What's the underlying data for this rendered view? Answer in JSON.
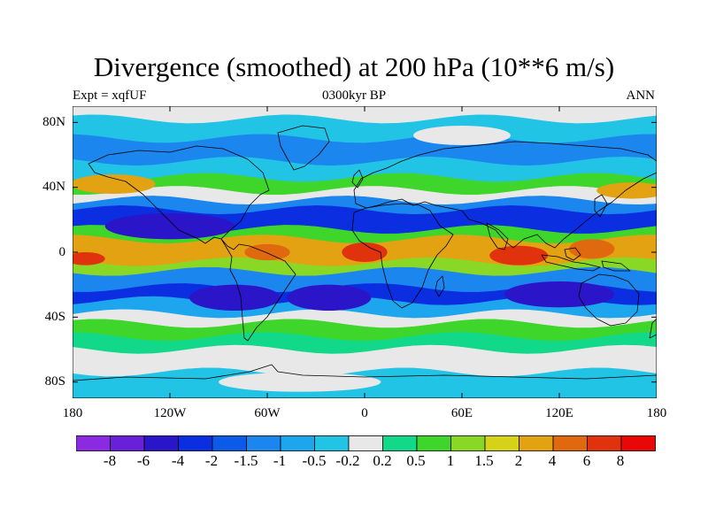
{
  "title": "Divergence (smoothed) at 200 hPa (10**6 m/s)",
  "experiment": "Expt = xqfUF",
  "period": "0300kyr BP",
  "season": "ANN",
  "chart_data": {
    "type": "heatmap",
    "projection": "cylindrical-equidistant",
    "variable": "Divergence (smoothed) at 200 hPa",
    "units": "10**6 m/s",
    "lon_range": [
      -180,
      180
    ],
    "lat_range": [
      -90,
      90
    ],
    "x_ticks": [
      {
        "lon": -180,
        "label": "180"
      },
      {
        "lon": -120,
        "label": "120W"
      },
      {
        "lon": -60,
        "label": "60W"
      },
      {
        "lon": 0,
        "label": "0"
      },
      {
        "lon": 60,
        "label": "60E"
      },
      {
        "lon": 120,
        "label": "120E"
      },
      {
        "lon": 180,
        "label": "180"
      }
    ],
    "y_ticks": [
      {
        "lat": 80,
        "label": "80N"
      },
      {
        "lat": 40,
        "label": "40N"
      },
      {
        "lat": 0,
        "label": "0"
      },
      {
        "lat": -40,
        "label": "40S"
      },
      {
        "lat": -80,
        "label": "80S"
      }
    ],
    "levels": [
      {
        "label": "-8",
        "color": "#8a2be2"
      },
      {
        "label": "-6",
        "color": "#6a1fd8"
      },
      {
        "label": "-4",
        "color": "#2a16c8"
      },
      {
        "label": "-2",
        "color": "#0a2ee0"
      },
      {
        "label": "-1.5",
        "color": "#0c5ae8"
      },
      {
        "label": "-1",
        "color": "#1a86ee"
      },
      {
        "label": "-0.5",
        "color": "#1da6ee"
      },
      {
        "label": "-0.2",
        "color": "#22c4e6"
      },
      {
        "label": "0.2",
        "color": "#e8e8e8"
      },
      {
        "label": "0.5",
        "color": "#12d88a"
      },
      {
        "label": "1",
        "color": "#3ed62a"
      },
      {
        "label": "1.5",
        "color": "#8ad826"
      },
      {
        "label": "2",
        "color": "#d6d21a"
      },
      {
        "label": "4",
        "color": "#e2a212"
      },
      {
        "label": "6",
        "color": "#e0680e"
      },
      {
        "label": "8",
        "color": "#e0320c"
      }
    ],
    "final_color": "#e80808",
    "bands": [
      {
        "lat_n": 90,
        "lat_s": 82,
        "color": "#e8e8e8"
      },
      {
        "lat_n": 82,
        "lat_s": 70,
        "color": "#22c4e6"
      },
      {
        "lat_n": 70,
        "lat_s": 56,
        "color": "#1a86ee"
      },
      {
        "lat_n": 56,
        "lat_s": 46,
        "color": "#22c4e6"
      },
      {
        "lat_n": 46,
        "lat_s": 38,
        "color": "#3ed62a"
      },
      {
        "lat_n": 38,
        "lat_s": 32,
        "color": "#e8e8e8"
      },
      {
        "lat_n": 32,
        "lat_s": 26,
        "color": "#1a86ee"
      },
      {
        "lat_n": 26,
        "lat_s": 14,
        "color": "#0a2ee0"
      },
      {
        "lat_n": 14,
        "lat_s": 8,
        "color": "#3ed62a"
      },
      {
        "lat_n": 8,
        "lat_s": -6,
        "color": "#e2a212"
      },
      {
        "lat_n": -6,
        "lat_s": -12,
        "color": "#8ad826"
      },
      {
        "lat_n": -12,
        "lat_s": -22,
        "color": "#1a86ee"
      },
      {
        "lat_n": -22,
        "lat_s": -30,
        "color": "#0a2ee0"
      },
      {
        "lat_n": -30,
        "lat_s": -38,
        "color": "#1da6ee"
      },
      {
        "lat_n": -38,
        "lat_s": -44,
        "color": "#e8e8e8"
      },
      {
        "lat_n": -44,
        "lat_s": -52,
        "color": "#3ed62a"
      },
      {
        "lat_n": -52,
        "lat_s": -60,
        "color": "#12d88a"
      },
      {
        "lat_n": -60,
        "lat_s": -74,
        "color": "#e8e8e8"
      },
      {
        "lat_n": -74,
        "lat_s": -90,
        "color": "#22c4e6"
      }
    ],
    "features": [
      {
        "lon": -120,
        "lat": 16,
        "rlon": 40,
        "rlat": 8,
        "color": "#2a16c8"
      },
      {
        "lon": -80,
        "lat": -28,
        "rlon": 28,
        "rlat": 8,
        "color": "#2a16c8"
      },
      {
        "lon": -22,
        "lat": -28,
        "rlon": 26,
        "rlat": 8,
        "color": "#2a16c8"
      },
      {
        "lon": 120,
        "lat": -26,
        "rlon": 34,
        "rlat": 8,
        "color": "#2a16c8"
      },
      {
        "lon": -155,
        "lat": 42,
        "rlon": 26,
        "rlat": 6,
        "color": "#e2a212"
      },
      {
        "lon": 165,
        "lat": 38,
        "rlon": 22,
        "rlat": 5,
        "color": "#e2a212"
      },
      {
        "lon": 0,
        "lat": 0,
        "rlon": 14,
        "rlat": 6,
        "color": "#e0320c"
      },
      {
        "lon": 95,
        "lat": -2,
        "rlon": 18,
        "rlat": 6,
        "color": "#e0320c"
      },
      {
        "lon": 140,
        "lat": 2,
        "rlon": 14,
        "rlat": 6,
        "color": "#e0680e"
      },
      {
        "lon": -172,
        "lat": -4,
        "rlon": 12,
        "rlat": 4,
        "color": "#e0320c"
      },
      {
        "lon": -60,
        "lat": 0,
        "rlon": 14,
        "rlat": 5,
        "color": "#e0680e"
      },
      {
        "lon": 60,
        "lat": 72,
        "rlon": 30,
        "rlat": 6,
        "color": "#e8e8e8"
      },
      {
        "lon": -40,
        "lat": -80,
        "rlon": 50,
        "rlat": 6,
        "color": "#e8e8e8"
      }
    ]
  }
}
